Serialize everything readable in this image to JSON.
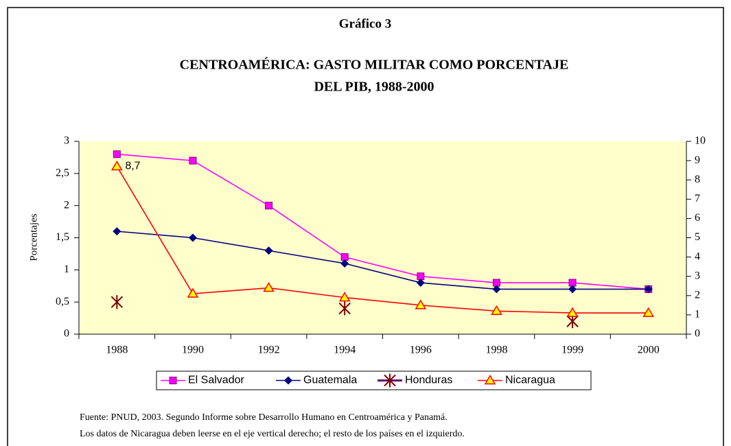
{
  "chart_data": {
    "type": "line",
    "figure_label": "Gráfico 3",
    "title": [
      "CENTROAMÉRICA:  GASTO MILITAR COMO PORCENTAJE",
      "DEL PIB, 1988-2000"
    ],
    "ylabel": "Porcentajes",
    "categories": [
      "1988",
      "1990",
      "1992",
      "1994",
      "1996",
      "1998",
      "1999",
      "2000"
    ],
    "ylim": [
      0,
      3
    ],
    "yticks": [
      0,
      {
        "value": 0.5,
        "label": "0,5"
      },
      1,
      {
        "value": 1.5,
        "label": "1,5"
      },
      2,
      {
        "value": 2.5,
        "label": "2,5"
      },
      3
    ],
    "y2lim": [
      0,
      10
    ],
    "y2ticks": [
      0,
      1,
      2,
      3,
      4,
      5,
      6,
      7,
      8,
      9,
      10
    ],
    "background": "#ffffcc",
    "legend": "bottom",
    "series": [
      {
        "name": "El Salvador",
        "color": "#ff00ff",
        "marker": "square",
        "line": true,
        "values": [
          2.8,
          2.7,
          2.0,
          1.2,
          0.9,
          0.8,
          0.8,
          0.7
        ]
      },
      {
        "name": "Guatemala",
        "color": "#000080",
        "marker": "diamond",
        "line": true,
        "values": [
          1.6,
          1.5,
          1.3,
          1.1,
          0.8,
          0.7,
          0.7,
          0.7
        ]
      },
      {
        "name": "Honduras",
        "color": "#800000",
        "marker": "asterisk",
        "line": false,
        "values": [
          0.5,
          null,
          null,
          0.4,
          null,
          null,
          0.2,
          null
        ]
      },
      {
        "name": "Nicaragua",
        "color": "#ff0000",
        "marker": "triangle",
        "line": true,
        "axis": "y2",
        "values": [
          8.7,
          2.1,
          2.4,
          1.9,
          1.5,
          1.2,
          1.1,
          1.1
        ],
        "value_labels": [
          "8,7",
          null,
          null,
          null,
          null,
          null,
          null,
          null
        ]
      }
    ],
    "notes": [
      "Fuente: PNUD, 2003. Segundo Informe sobre Desarrollo Humano en Centroamérica y Panamá.",
      "Los datos de Nicaragua deben leerse en el eje vertical derecho; el resto de los países en el izquierdo."
    ]
  }
}
